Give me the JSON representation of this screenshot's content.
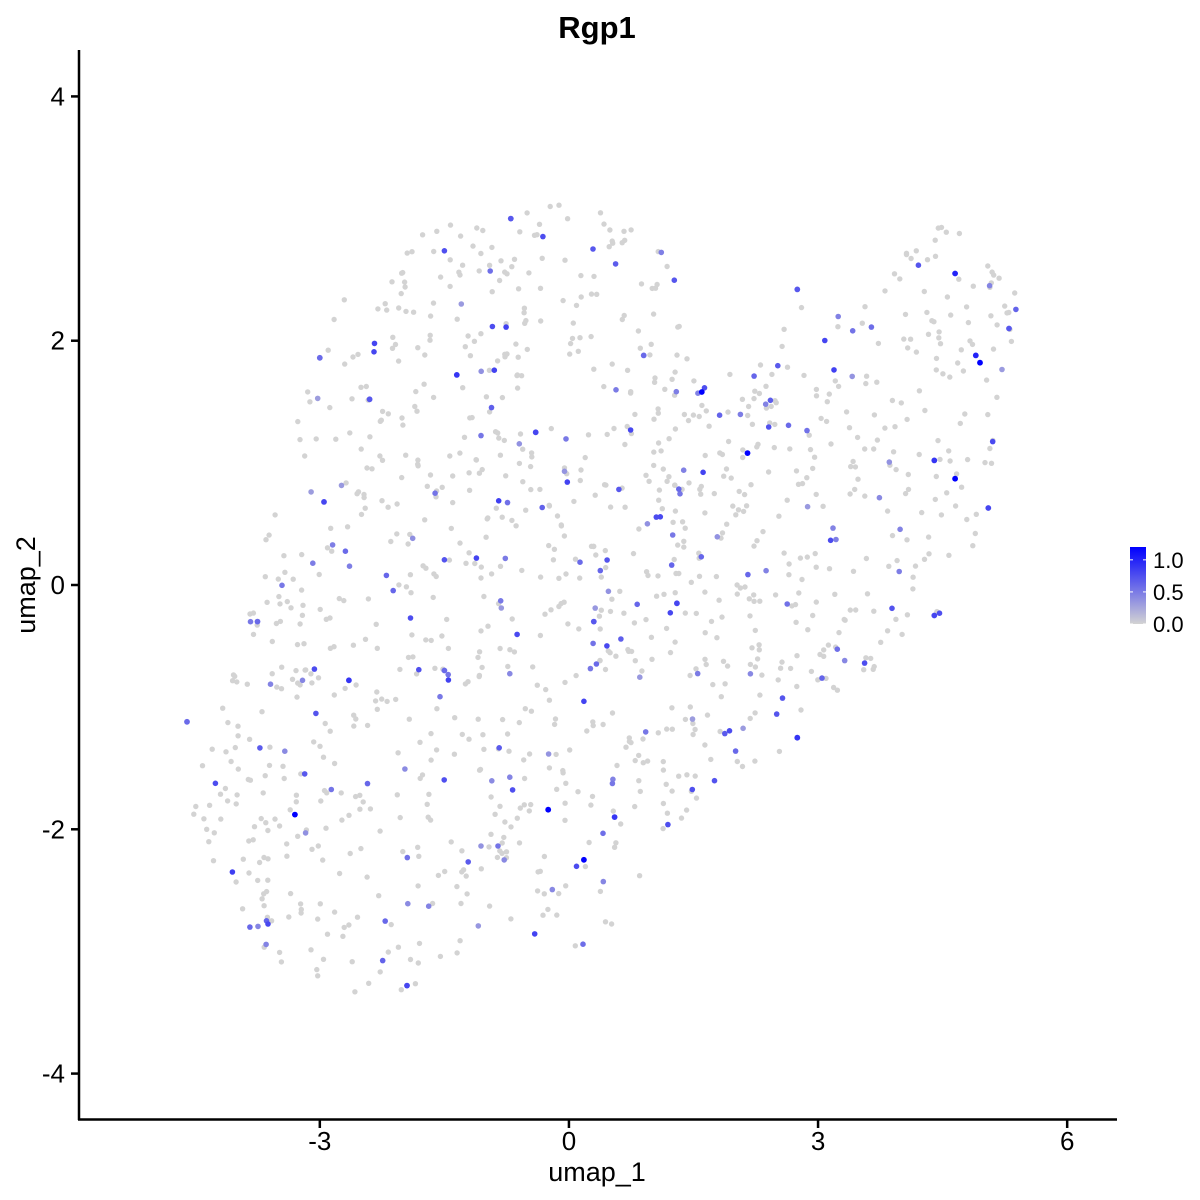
{
  "chart_data": {
    "type": "scatter",
    "title": "Rgp1",
    "xlabel": "umap_1",
    "ylabel": "umap_2",
    "xlim": [
      -5.9,
      6.6
    ],
    "ylim": [
      -4.38,
      4.38
    ],
    "x_ticks": [
      -3,
      0,
      3,
      6
    ],
    "y_ticks": [
      -4,
      -2,
      0,
      2,
      4
    ],
    "x_tick_labels": [
      "-3",
      "0",
      "3",
      "6"
    ],
    "y_tick_labels": [
      "-4",
      "-2",
      "0",
      "2",
      "4"
    ],
    "grid": false,
    "legend": {
      "placement": "right",
      "type": "colorbar",
      "range": [
        0,
        1.2
      ],
      "labels": [
        "1.0",
        "0.5",
        "0.0"
      ],
      "label_values": [
        1.0,
        0.5,
        0.0
      ],
      "low_color": "#d3d3d3",
      "high_color": "#0000ff"
    },
    "color_scale": [
      "#d3d3d3",
      "#0000ff"
    ],
    "n_background_points": 1250,
    "highlighted_points": [
      {
        "x": 1.6,
        "y": 1.58,
        "v": 1.2
      },
      {
        "x": 2.15,
        "y": 1.08,
        "v": 1.2
      },
      {
        "x": 4.65,
        "y": 0.87,
        "v": 1.2
      },
      {
        "x": 4.95,
        "y": 1.82,
        "v": 1.2
      },
      {
        "x": 0.18,
        "y": -2.25,
        "v": 1.2
      },
      {
        "x": -0.25,
        "y": -1.84,
        "v": 1.2
      },
      {
        "x": -3.3,
        "y": -1.88,
        "v": 1.2
      },
      {
        "x": 4.9,
        "y": 1.88,
        "v": 1.0
      },
      {
        "x": 4.65,
        "y": 2.55,
        "v": 1.0
      },
      {
        "x": -1.35,
        "y": 1.72,
        "v": 0.9
      },
      {
        "x": -2.65,
        "y": -0.78,
        "v": 0.9
      },
      {
        "x": 2.75,
        "y": -1.25,
        "v": 0.9
      },
      {
        "x": 0.55,
        "y": -1.9,
        "v": 0.9
      },
      {
        "x": -1.95,
        "y": -3.28,
        "v": 0.8
      },
      {
        "x": -2.95,
        "y": 0.68,
        "v": 0.8
      },
      {
        "x": 5.05,
        "y": 0.63,
        "v": 0.8
      },
      {
        "x": 4.4,
        "y": 1.02,
        "v": 0.9
      },
      {
        "x": -0.4,
        "y": 1.25,
        "v": 0.8
      },
      {
        "x": 1.3,
        "y": -0.15,
        "v": 0.8
      },
      {
        "x": 0.3,
        "y": -0.3,
        "v": 0.7
      },
      {
        "x": -2.4,
        "y": 1.52,
        "v": 0.7
      },
      {
        "x": 2.75,
        "y": 2.42,
        "v": 0.7
      },
      {
        "x": -0.7,
        "y": 3.0,
        "v": 0.7
      },
      {
        "x": -3.0,
        "y": 1.86,
        "v": 0.6
      },
      {
        "x": -1.5,
        "y": -0.7,
        "v": 0.6
      },
      {
        "x": 4.4,
        "y": -0.25,
        "v": 0.8
      },
      {
        "x": 5.3,
        "y": 2.1,
        "v": 0.7
      },
      {
        "x": -3.75,
        "y": -0.3,
        "v": 0.6
      },
      {
        "x": -4.6,
        "y": -1.12,
        "v": 0.6
      },
      {
        "x": 0.9,
        "y": 1.88,
        "v": 0.6
      }
    ]
  }
}
